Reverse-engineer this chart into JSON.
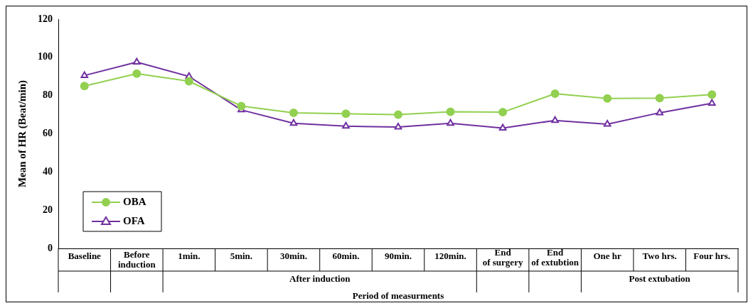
{
  "chart_data": {
    "type": "line",
    "ylabel": "Mean of HR (Beat/min)",
    "xlabel": "Period of measurments",
    "categories": [
      "Baseline",
      "Before induction",
      "1min.",
      "5min.",
      "30min.",
      "60min.",
      "90min.",
      "120min.",
      null,
      null,
      "One hr",
      "Two hrs.",
      "Four hrs."
    ],
    "series": [
      {
        "name": "OBA",
        "color": "#92d050",
        "marker": "circle",
        "values": [
          85,
          91.5,
          87.5,
          74.5,
          71,
          70.5,
          70,
          71.5,
          71.3,
          81,
          78.5,
          78.7,
          80.5
        ]
      },
      {
        "name": "OFA",
        "color": "#7030a0",
        "marker": "triangle",
        "values": [
          90.5,
          97.5,
          90,
          72.5,
          65.5,
          64,
          63.5,
          65.5,
          63,
          67,
          65,
          71,
          76
        ]
      }
    ],
    "annotations": [
      "After induction",
      "End of surgery",
      "End of extubtion",
      "Post extubation"
    ],
    "ylim": [
      0,
      120
    ],
    "yticks": [
      0,
      20,
      40,
      60,
      80,
      100,
      120
    ],
    "grid": false,
    "legend": "bottom left"
  }
}
